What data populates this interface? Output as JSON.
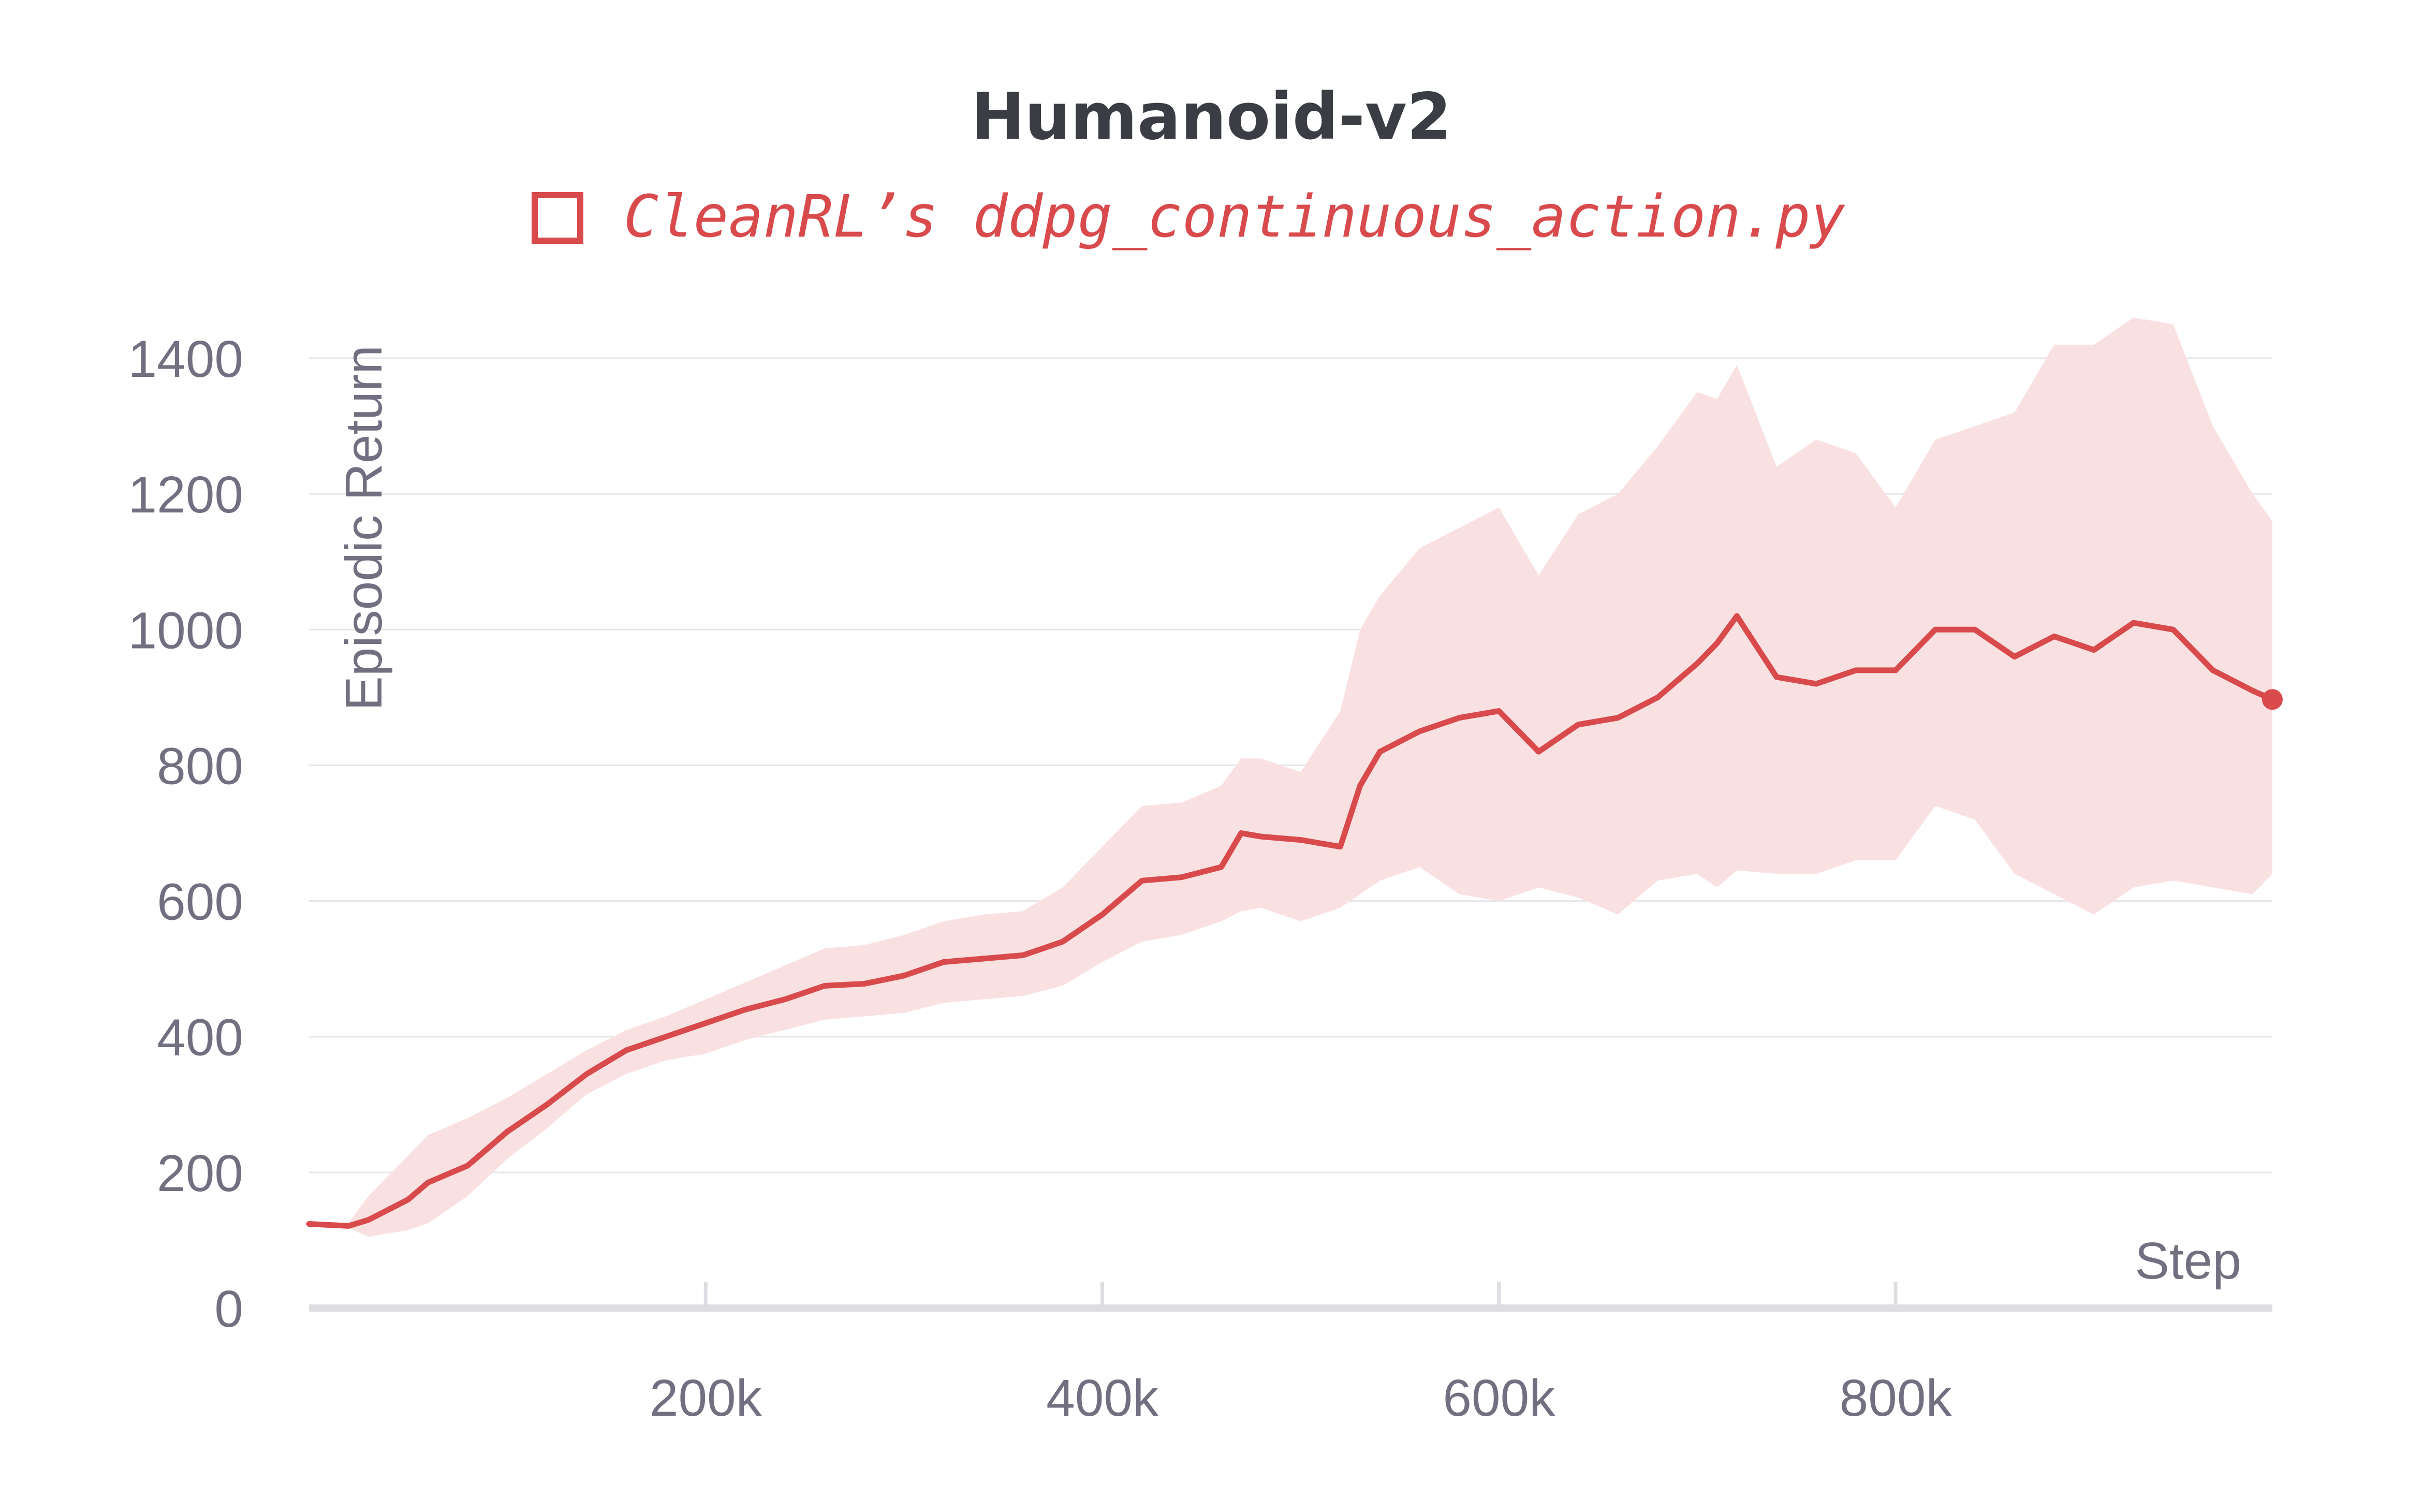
{
  "chart_data": {
    "type": "line",
    "title": "Humanoid-v2",
    "xlabel": "Step",
    "ylabel": "Episodic Return",
    "xlim": [
      0,
      990000
    ],
    "ylim": [
      0,
      1400
    ],
    "x_ticks": [
      {
        "value": 200000,
        "label": "200k"
      },
      {
        "value": 400000,
        "label": "400k"
      },
      {
        "value": 600000,
        "label": "600k"
      },
      {
        "value": 800000,
        "label": "800k"
      }
    ],
    "y_ticks": [
      {
        "value": 0,
        "label": "0"
      },
      {
        "value": 200,
        "label": "200"
      },
      {
        "value": 400,
        "label": "400"
      },
      {
        "value": 600,
        "label": "600"
      },
      {
        "value": 800,
        "label": "800"
      },
      {
        "value": 1000,
        "label": "1000"
      },
      {
        "value": 1200,
        "label": "1200"
      },
      {
        "value": 1400,
        "label": "1400"
      }
    ],
    "grid": true,
    "legend_position": "top",
    "series": [
      {
        "name": "CleanRL’s ddpg_continuous_action.py",
        "color": "#d94a4d",
        "band_color": "#f9e1e2",
        "x": [
          0,
          20000,
          30000,
          50000,
          60000,
          80000,
          100000,
          120000,
          140000,
          160000,
          180000,
          200000,
          220000,
          240000,
          260000,
          280000,
          300000,
          320000,
          340000,
          360000,
          380000,
          400000,
          420000,
          440000,
          460000,
          470000,
          480000,
          500000,
          520000,
          530000,
          540000,
          560000,
          580000,
          600000,
          620000,
          640000,
          660000,
          680000,
          700000,
          710000,
          720000,
          740000,
          760000,
          780000,
          800000,
          820000,
          840000,
          860000,
          880000,
          900000,
          920000,
          940000,
          960000,
          980000,
          990000
        ],
        "values": [
          124,
          121,
          130,
          160,
          185,
          210,
          260,
          300,
          345,
          380,
          400,
          420,
          440,
          455,
          475,
          478,
          490,
          510,
          515,
          520,
          540,
          580,
          630,
          635,
          650,
          700,
          695,
          690,
          680,
          770,
          820,
          850,
          870,
          880,
          820,
          860,
          870,
          900,
          950,
          980,
          1020,
          930,
          920,
          940,
          940,
          1000,
          1000,
          960,
          990,
          970,
          1010,
          1000,
          940,
          910,
          897
        ],
        "lower": [
          122,
          118,
          105,
          115,
          125,
          165,
          220,
          265,
          315,
          345,
          365,
          375,
          395,
          410,
          425,
          430,
          435,
          450,
          455,
          460,
          475,
          510,
          540,
          550,
          570,
          585,
          590,
          570,
          590,
          610,
          630,
          650,
          610,
          600,
          620,
          605,
          580,
          630,
          640,
          620,
          645,
          640,
          640,
          660,
          660,
          740,
          720,
          640,
          610,
          580,
          620,
          630,
          620,
          610,
          640
        ],
        "upper": [
          126,
          126,
          165,
          225,
          255,
          280,
          310,
          345,
          380,
          410,
          430,
          455,
          480,
          505,
          530,
          535,
          550,
          570,
          580,
          585,
          620,
          680,
          740,
          745,
          770,
          810,
          810,
          790,
          880,
          1000,
          1050,
          1120,
          1150,
          1180,
          1080,
          1170,
          1200,
          1270,
          1350,
          1340,
          1390,
          1240,
          1280,
          1260,
          1180,
          1280,
          1300,
          1320,
          1420,
          1420,
          1460,
          1450,
          1300,
          1200,
          1160
        ]
      }
    ]
  }
}
